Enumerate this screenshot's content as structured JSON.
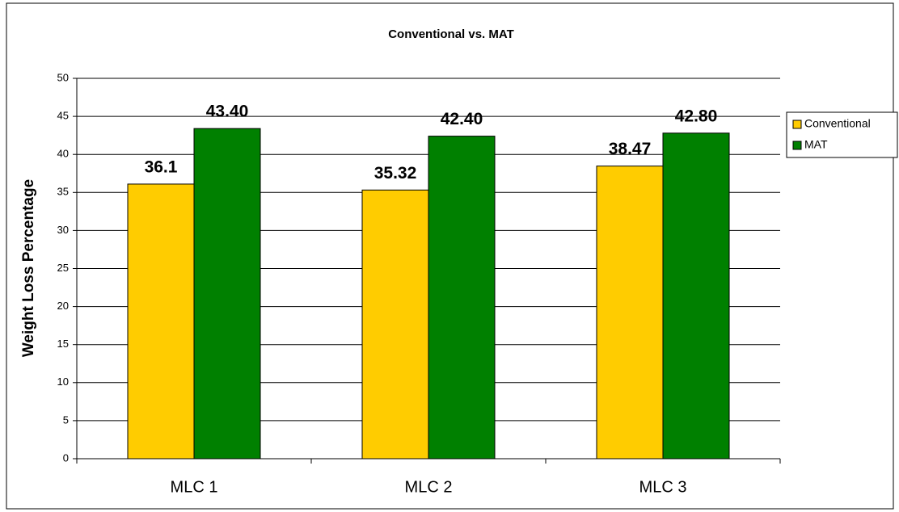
{
  "chart_data": {
    "type": "bar",
    "title": "Conventional vs. MAT",
    "y_label": "Weight Loss Percentage",
    "categories": [
      "MLC 1",
      "MLC 2",
      "MLC 3"
    ],
    "series": [
      {
        "name": "Conventional",
        "color": "#ffcc00",
        "values": [
          36.1,
          35.32,
          38.47
        ]
      },
      {
        "name": "MAT",
        "color": "#008000",
        "values": [
          43.4,
          42.4,
          42.8
        ],
        "value_labels": [
          "43.40",
          "42.40",
          "42.80"
        ]
      }
    ],
    "ylim": [
      0,
      50
    ],
    "yticks": [
      0,
      5,
      10,
      15,
      20,
      25,
      30,
      35,
      40,
      45,
      50
    ],
    "grid": true,
    "legend": "right"
  }
}
